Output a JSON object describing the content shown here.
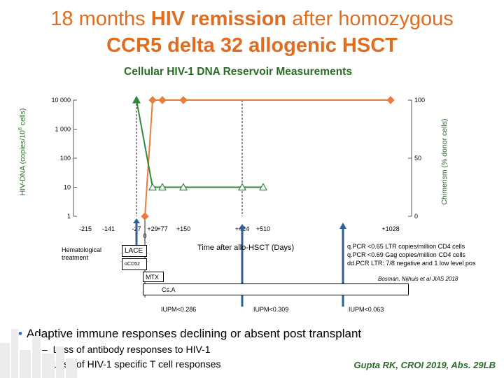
{
  "title_line1_pre": "18 months ",
  "title_line1_bold": "HIV remission",
  "title_line1_post": " after homozygous",
  "title_line2": "CCR5 delta 32 allogenic HSCT",
  "chart_data": {
    "type": "line",
    "title": "Cellular HIV-1 DNA Reservoir Measurements",
    "xlabel": "Time after allo-HSCT (Days)",
    "ylabel_left_pre": "HIV-DNA (copies/10",
    "ylabel_left_sup": "6",
    "ylabel_left_post": " cells)",
    "ylabel_right": "Chimerism (% donor cells)",
    "left_ticks": [
      "1",
      "10",
      "100",
      "1 000",
      "10 000"
    ],
    "right_ticks": [
      "0",
      "50",
      "100"
    ],
    "x_ticks": [
      "-215",
      "-141",
      "-27",
      "0",
      "+29",
      "+77",
      "+150",
      "+424",
      "+510",
      "+1028"
    ],
    "left_axis": {
      "scale": "log",
      "range": [
        1,
        10000
      ]
    },
    "right_axis": {
      "scale": "linear",
      "range": [
        0,
        100
      ]
    },
    "vertical_markers": [
      -27,
      424
    ],
    "series": [
      {
        "color": "#e87d3e",
        "axis": "right",
        "marker": "diamond",
        "points": [
          [
            0,
            0
          ],
          [
            29,
            100
          ],
          [
            77,
            100
          ],
          [
            150,
            100
          ],
          [
            1028,
            100
          ]
        ]
      },
      {
        "color": "#2e8b3a",
        "axis": "left",
        "marker": "triangle",
        "points": [
          [
            -27,
            10000
          ],
          [
            29,
            10
          ],
          [
            77,
            10
          ],
          [
            150,
            10
          ],
          [
            424,
            10
          ],
          [
            510,
            10
          ]
        ],
        "unfilled_from": 1
      }
    ]
  },
  "annotations": {
    "hematological": "Hematological treatment",
    "lace": "LACE",
    "acd52": "αCD52",
    "mtx": "MTX",
    "csa": "Cs.A",
    "iupm1": "IUPM<0.286",
    "iupm2": "IUPM<0.309",
    "iupm3": "IUPM<0.063",
    "qpcr1": "q.PCR <0.65 LTR copies/million CD4 cells",
    "qpcr2": "q.PCR <0.69 Gag copies/million CD4 cells",
    "qpcr3": "dd.PCR LTR: 7/8 negative and 1 low level pos",
    "ref_small": "Bosman, Nijhuis et al JIAS 2018"
  },
  "bullets": {
    "main": "Adaptive immune responses declining or absent post transplant",
    "sub1": "Loss of antibody responses to HIV-1",
    "sub2": "Loss of HIV-1 specific T cell responses"
  },
  "citation": "Gupta RK, CROI 2019, Abs. 29LB",
  "colors": {
    "title": "#e06c1f",
    "subtitle": "#2c6a28",
    "bullet": "#1f6cbf",
    "arrow": "#2f5f93"
  }
}
